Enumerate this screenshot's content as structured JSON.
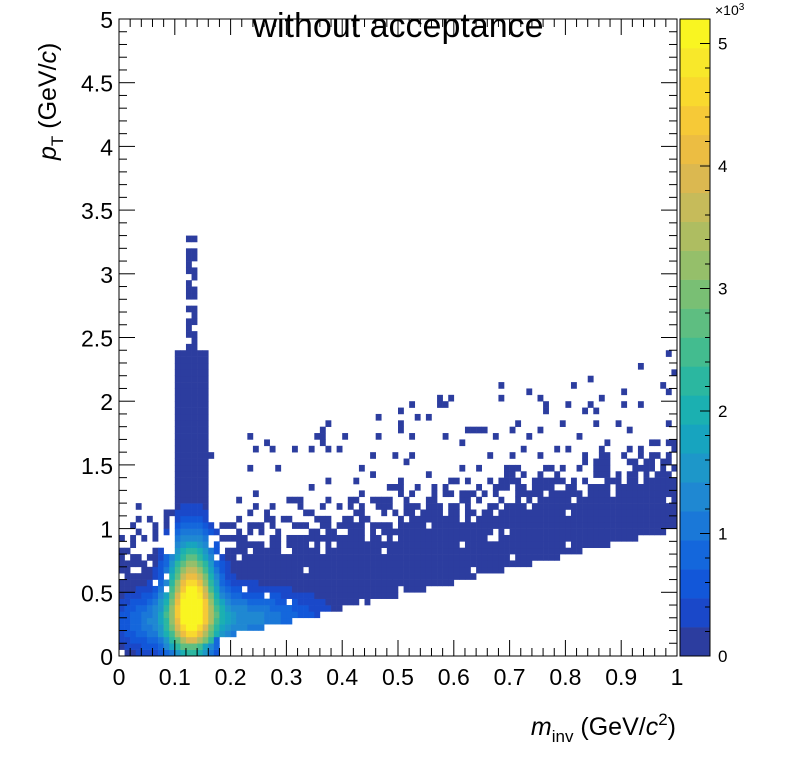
{
  "chart_data": {
    "type": "heatmap",
    "title": "without acceptance",
    "xlabel": {
      "main": "m",
      "sub": "inv",
      "unit_pre": " (GeV/",
      "unit_var": "c",
      "unit_sup": "2",
      "unit_post": ")"
    },
    "ylabel": {
      "main": "p",
      "sub": "T",
      "unit_pre": " (GeV/",
      "unit_var": "c",
      "unit_post": ")"
    },
    "xlim": [
      0,
      1
    ],
    "ylim": [
      0,
      5
    ],
    "x_ticks": [
      0,
      0.1,
      0.2,
      0.3,
      0.4,
      0.5,
      0.6,
      0.7,
      0.8,
      0.9,
      1
    ],
    "x_tick_labels": [
      "0",
      "0.1",
      "0.2",
      "0.3",
      "0.4",
      "0.5",
      "0.6",
      "0.7",
      "0.8",
      "0.9",
      "1"
    ],
    "y_ticks": [
      0,
      0.5,
      1,
      1.5,
      2,
      2.5,
      3,
      3.5,
      4,
      4.5,
      5
    ],
    "y_tick_labels": [
      "0",
      "0.5",
      "1",
      "1.5",
      "2",
      "2.5",
      "3",
      "3.5",
      "4",
      "4.5",
      "5"
    ],
    "bins_x": 100,
    "bins_y": 100,
    "description": "Photon-pair invariant mass vs transverse momentum; peak near m = 0.13 GeV/c^2, p_T around 0.3-0.5 GeV/c",
    "peak": {
      "x": 0.13,
      "y": 0.42,
      "z": 5000
    },
    "z_range": [
      0,
      5200
    ],
    "colorbar": {
      "ticks": [
        0,
        1000,
        2000,
        3000,
        4000,
        5000
      ],
      "tick_labels": [
        "0",
        "1",
        "2",
        "3",
        "4",
        "5"
      ],
      "multiplier": "×10",
      "multiplier_exp": "3",
      "colors": [
        "#2c3d9f",
        "#1a48c9",
        "#1257d9",
        "#1467dc",
        "#1a78d8",
        "#1f88d2",
        "#1d97c9",
        "#17a4bf",
        "#1bb0b1",
        "#2bb7a0",
        "#43bc8f",
        "#5ebe81",
        "#79bf74",
        "#95bf6a",
        "#aebd61",
        "#c6bb5a",
        "#dbb850",
        "#ecbd42",
        "#f6c937",
        "#f9d92e",
        "#f8e82a",
        "#f9f521"
      ]
    },
    "grid": false,
    "legend": "none"
  }
}
